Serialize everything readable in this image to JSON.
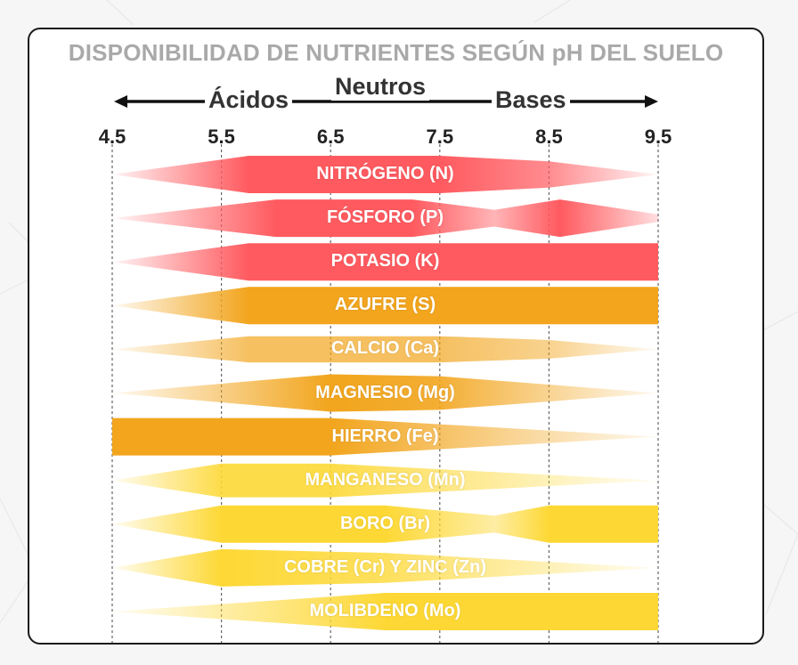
{
  "chart_data": {
    "type": "bar",
    "title": "DISPONIBILIDAD DE NUTRIENTES SEGÚN pH DEL SUELO",
    "direction": {
      "acid_label": "Ácidos",
      "neutral_label": "Neutros",
      "base_label": "Bases"
    },
    "xlim": [
      4.5,
      9.5
    ],
    "ticks": [
      "4.5",
      "5.5",
      "6.5",
      "7.5",
      "8.5",
      "9.5"
    ],
    "tick_values": [
      4.5,
      5.5,
      6.5,
      7.5,
      8.5,
      9.5
    ],
    "grid": true,
    "nutrients": [
      {
        "label": "NITRÓGENO (N)",
        "color": "#ff5a5f",
        "availability": [
          [
            4.5,
            0
          ],
          [
            5.75,
            1
          ],
          [
            7.5,
            1
          ],
          [
            8.5,
            0.7
          ],
          [
            9.5,
            0
          ]
        ]
      },
      {
        "label": "FÓSFORO (P)",
        "color": "#ff5a5f",
        "availability": [
          [
            4.5,
            0
          ],
          [
            6.0,
            1
          ],
          [
            7.25,
            1
          ],
          [
            8.0,
            0.45
          ],
          [
            8.6,
            1
          ],
          [
            9.5,
            0.2
          ]
        ]
      },
      {
        "label": "POTASIO (K)",
        "color": "#ff5a5f",
        "availability": [
          [
            4.5,
            0
          ],
          [
            5.75,
            1
          ],
          [
            9.5,
            1
          ]
        ]
      },
      {
        "label": "AZUFRE (S)",
        "color": "#f2a51d",
        "availability": [
          [
            4.5,
            0
          ],
          [
            5.75,
            1
          ],
          [
            9.5,
            1
          ]
        ]
      },
      {
        "label": "CALCIO (Ca)",
        "color": "#f2a51d",
        "availability": [
          [
            4.5,
            0
          ],
          [
            5.75,
            0.7
          ],
          [
            7.5,
            0.7
          ],
          [
            8.5,
            0.5
          ],
          [
            9.5,
            0
          ]
        ]
      },
      {
        "label": "MAGNESIO (Mg)",
        "color": "#f2a51d",
        "availability": [
          [
            4.5,
            0
          ],
          [
            6.5,
            1
          ],
          [
            7.5,
            0.9
          ],
          [
            9.5,
            0
          ]
        ]
      },
      {
        "label": "HIERRO (Fe)",
        "color": "#f2a51d",
        "availability": [
          [
            4.5,
            1
          ],
          [
            6.5,
            1
          ],
          [
            9.5,
            0
          ]
        ]
      },
      {
        "label": "MANGANESO (Mn)",
        "color": "#fdd835",
        "availability": [
          [
            4.5,
            0
          ],
          [
            5.5,
            0.9
          ],
          [
            6.5,
            0.9
          ],
          [
            9.5,
            0
          ]
        ]
      },
      {
        "label": "BORO (Br)",
        "color": "#fdd835",
        "availability": [
          [
            4.5,
            0
          ],
          [
            5.5,
            1
          ],
          [
            7.0,
            1
          ],
          [
            8.0,
            0.45
          ],
          [
            8.5,
            1
          ],
          [
            9.5,
            1
          ]
        ]
      },
      {
        "label": "COBRE (Cr) Y ZINC (Zn)",
        "color": "#fdd835",
        "availability": [
          [
            4.5,
            0
          ],
          [
            5.5,
            1
          ],
          [
            7.0,
            0.8
          ],
          [
            9.5,
            0
          ]
        ]
      },
      {
        "label": "MOLIBDENO (Mo)",
        "color": "#fdd835",
        "availability": [
          [
            4.5,
            0
          ],
          [
            7.0,
            1
          ],
          [
            9.5,
            1
          ]
        ]
      }
    ]
  }
}
